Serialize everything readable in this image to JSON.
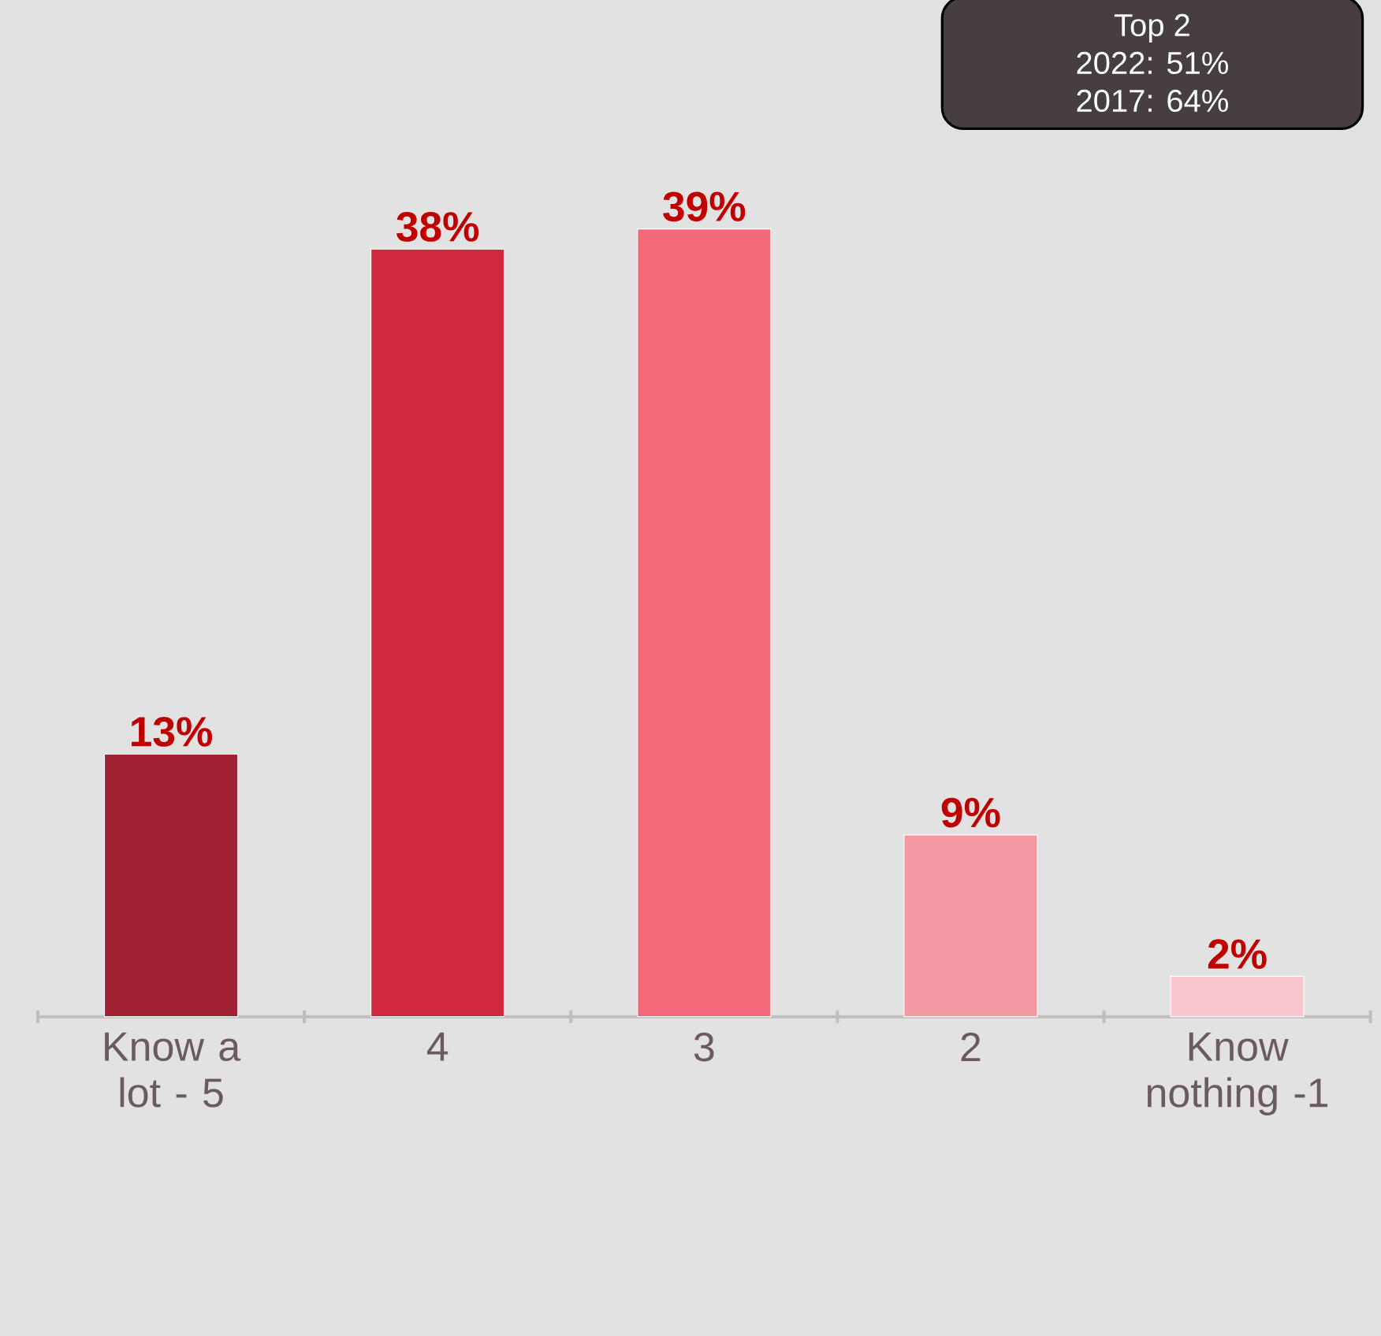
{
  "chart_data": {
    "type": "bar",
    "categories": [
      "Know a lot - 5",
      "4",
      "3",
      "2",
      "Know nothing -1"
    ],
    "values": [
      13,
      38,
      39,
      9,
      2
    ],
    "colors": [
      "#a02232",
      "#d0283c",
      "#f46a7a",
      "#f499a4",
      "#f7c6cc"
    ],
    "value_labels": [
      "13%",
      "38%",
      "39%",
      "9%",
      "2%"
    ],
    "annotations": [
      "Top 2",
      "2022: 51%",
      "2017: 64%"
    ],
    "grid": false
  }
}
